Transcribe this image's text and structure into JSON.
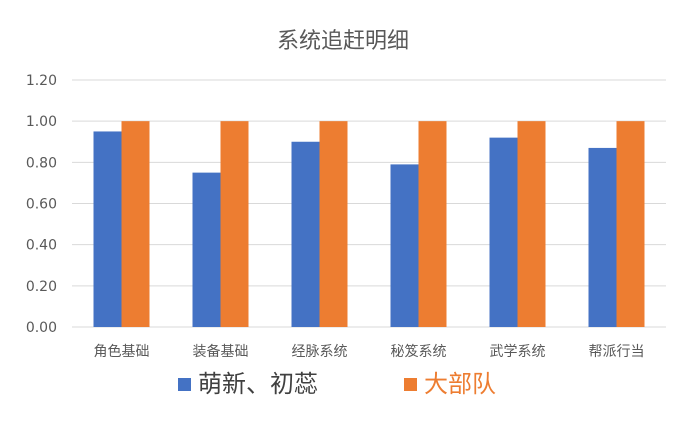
{
  "chart_data": {
    "type": "bar",
    "title": "系统追赶明细",
    "categories": [
      "角色基础",
      "装备基础",
      "经脉系统",
      "秘笈系统",
      "武学系统",
      "帮派行当"
    ],
    "series": [
      {
        "name": "萌新、初蕊",
        "color": "#4472C4",
        "values": [
          0.95,
          0.75,
          0.9,
          0.79,
          0.92,
          0.87
        ]
      },
      {
        "name": "大部队",
        "color": "#ED7D31",
        "values": [
          1.0,
          1.0,
          1.0,
          1.0,
          1.0,
          1.0
        ]
      }
    ],
    "ylim": [
      0,
      1.2
    ],
    "yticks": [
      "0.00",
      "0.20",
      "0.40",
      "0.60",
      "0.80",
      "1.00",
      "1.20"
    ],
    "grid": true,
    "legend_position": "bottom",
    "gridline_color": "#D9D9D9"
  }
}
